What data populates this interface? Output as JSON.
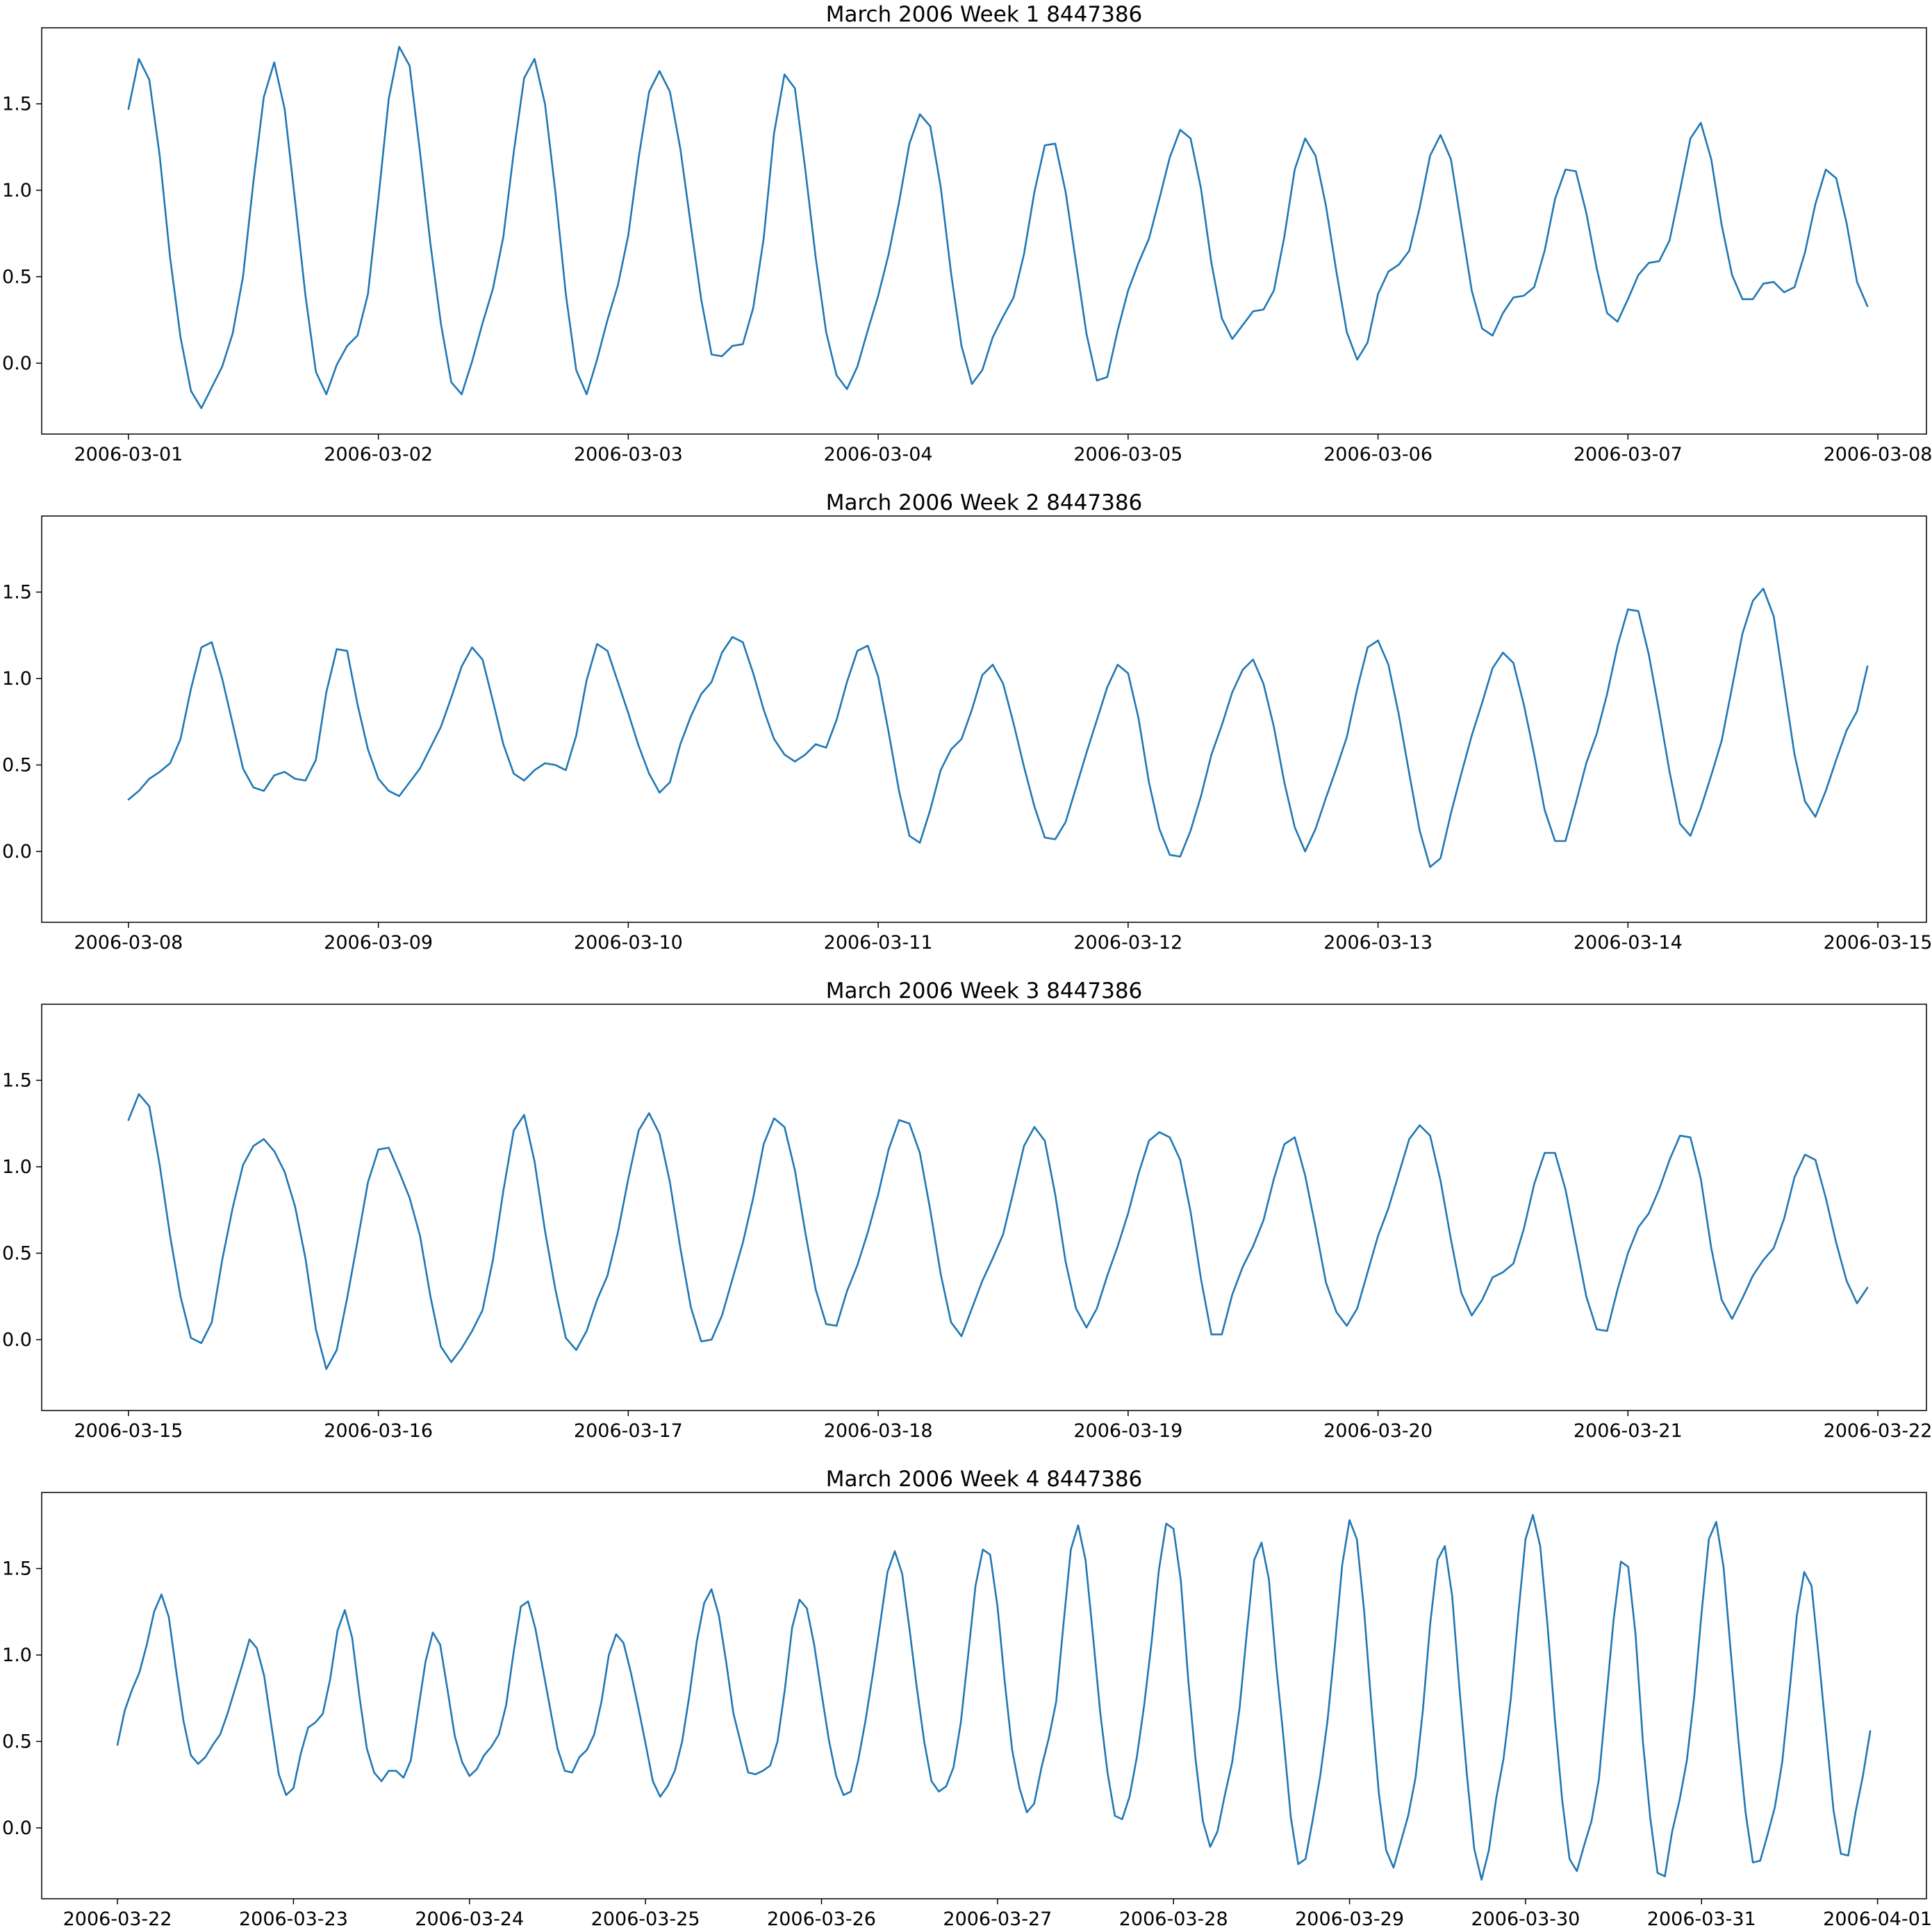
{
  "chart_data": [
    {
      "type": "line",
      "title": "March 2006 Week 1 8447386",
      "xlabel": "",
      "ylabel": "",
      "x_start": "2006-03-01 00:00",
      "x_end": "2006-03-07 23:00",
      "x_step": "1 hour",
      "xlim": [
        "2006-02-28 15:40",
        "2006-03-08 04:40"
      ],
      "ylim": [
        -0.41,
        1.94
      ],
      "xticks": [
        "2006-03-01",
        "2006-03-02",
        "2006-03-03",
        "2006-03-04",
        "2006-03-05",
        "2006-03-06",
        "2006-03-07",
        "2006-03-08"
      ],
      "yticks": [
        "0.0",
        "0.5",
        "1.0",
        "1.5"
      ],
      "ytick_values": [
        0.0,
        0.5,
        1.0,
        1.5
      ],
      "grid": false,
      "color": "#1f77b4",
      "series": [
        {
          "values": [
            1.47,
            1.76,
            1.64,
            1.2,
            0.61,
            0.15,
            -0.16,
            -0.26,
            -0.14,
            -0.02,
            0.17,
            0.5,
            1.05,
            1.54,
            1.74,
            1.47,
            0.94,
            0.39,
            -0.05,
            -0.18,
            -0.01,
            0.1,
            0.16,
            0.4,
            0.95,
            1.53,
            1.83,
            1.72,
            1.22,
            0.69,
            0.23,
            -0.11,
            -0.18,
            0.01,
            0.23,
            0.43,
            0.73,
            1.22,
            1.65,
            1.76,
            1.5,
            0.99,
            0.4,
            -0.04,
            -0.18,
            0.02,
            0.25,
            0.45,
            0.74,
            1.19,
            1.57,
            1.69,
            1.57,
            1.24,
            0.8,
            0.37,
            0.05,
            0.04,
            0.1,
            0.11,
            0.32,
            0.72,
            1.33,
            1.67,
            1.59,
            1.12,
            0.61,
            0.18,
            -0.07,
            -0.15,
            -0.02,
            0.19,
            0.39,
            0.63,
            0.93,
            1.27,
            1.44,
            1.37,
            1.02,
            0.52,
            0.1,
            -0.12,
            -0.04,
            0.15,
            0.27,
            0.38,
            0.63,
            0.99,
            1.26,
            1.27,
            0.99,
            0.58,
            0.17,
            -0.1,
            -0.08,
            0.19,
            0.42,
            0.58,
            0.72,
            0.95,
            1.19,
            1.35,
            1.3,
            1.01,
            0.58,
            0.26,
            0.14,
            0.22,
            0.3,
            0.31,
            0.42,
            0.73,
            1.12,
            1.3,
            1.2,
            0.91,
            0.53,
            0.18,
            0.02,
            0.12,
            0.4,
            0.53,
            0.57,
            0.65,
            0.9,
            1.2,
            1.32,
            1.18,
            0.8,
            0.42,
            0.2,
            0.16,
            0.29,
            0.38,
            0.39,
            0.44,
            0.65,
            0.95,
            1.12,
            1.11,
            0.87,
            0.55,
            0.29,
            0.24,
            0.37,
            0.51,
            0.58,
            0.59,
            0.71,
            1.0,
            1.3,
            1.39,
            1.18,
            0.8,
            0.51,
            0.37,
            0.37,
            0.46,
            0.47,
            0.41,
            0.44,
            0.64,
            0.92,
            1.12,
            1.07,
            0.81,
            0.47,
            0.33
          ]
        }
      ]
    },
    {
      "type": "line",
      "title": "March 2006 Week 2 8447386",
      "xlabel": "",
      "ylabel": "",
      "x_start": "2006-03-08 00:00",
      "x_end": "2006-03-14 23:00",
      "x_step": "1 hour",
      "xlim": [
        "2006-03-07 15:40",
        "2006-03-15 04:40"
      ],
      "ylim": [
        -0.41,
        1.94
      ],
      "xticks": [
        "2006-03-08",
        "2006-03-09",
        "2006-03-10",
        "2006-03-11",
        "2006-03-12",
        "2006-03-13",
        "2006-03-14",
        "2006-03-15"
      ],
      "yticks": [
        "0.0",
        "0.5",
        "1.0",
        "1.5"
      ],
      "ytick_values": [
        0.0,
        0.5,
        1.0,
        1.5
      ],
      "grid": false,
      "color": "#1f77b4",
      "series": [
        {
          "values": [
            0.3,
            0.35,
            0.42,
            0.46,
            0.51,
            0.65,
            0.94,
            1.18,
            1.21,
            1.0,
            0.74,
            0.48,
            0.37,
            0.35,
            0.44,
            0.46,
            0.42,
            0.41,
            0.53,
            0.92,
            1.17,
            1.16,
            0.85,
            0.59,
            0.42,
            0.35,
            0.32,
            0.4,
            0.48,
            0.6,
            0.72,
            0.89,
            1.07,
            1.18,
            1.11,
            0.87,
            0.62,
            0.45,
            0.41,
            0.47,
            0.51,
            0.5,
            0.47,
            0.67,
            0.99,
            1.2,
            1.16,
            0.98,
            0.8,
            0.61,
            0.45,
            0.34,
            0.4,
            0.62,
            0.78,
            0.91,
            0.98,
            1.15,
            1.24,
            1.21,
            1.03,
            0.82,
            0.65,
            0.56,
            0.52,
            0.56,
            0.62,
            0.6,
            0.76,
            0.98,
            1.16,
            1.19,
            1.01,
            0.69,
            0.35,
            0.09,
            0.05,
            0.24,
            0.47,
            0.59,
            0.65,
            0.82,
            1.02,
            1.08,
            0.97,
            0.74,
            0.49,
            0.26,
            0.08,
            0.07,
            0.17,
            0.37,
            0.57,
            0.76,
            0.95,
            1.08,
            1.03,
            0.77,
            0.4,
            0.13,
            -0.02,
            -0.03,
            0.12,
            0.32,
            0.56,
            0.73,
            0.92,
            1.05,
            1.11,
            0.97,
            0.72,
            0.4,
            0.14,
            0.0,
            0.13,
            0.31,
            0.48,
            0.66,
            0.94,
            1.18,
            1.22,
            1.08,
            0.79,
            0.45,
            0.12,
            -0.09,
            -0.04,
            0.22,
            0.45,
            0.67,
            0.86,
            1.06,
            1.15,
            1.09,
            0.85,
            0.56,
            0.24,
            0.06,
            0.06,
            0.28,
            0.51,
            0.68,
            0.91,
            1.19,
            1.4,
            1.39,
            1.14,
            0.81,
            0.46,
            0.16,
            0.09,
            0.25,
            0.44,
            0.64,
            0.95,
            1.26,
            1.45,
            1.52,
            1.36,
            0.96,
            0.56,
            0.29,
            0.2,
            0.35,
            0.53,
            0.7,
            0.81,
            1.07
          ]
        }
      ]
    },
    {
      "type": "line",
      "title": "March 2006 Week 3 8447386",
      "xlabel": "",
      "ylabel": "",
      "x_start": "2006-03-15 00:00",
      "x_end": "2006-03-21 23:00",
      "x_step": "1 hour",
      "xlim": [
        "2006-03-14 15:40",
        "2006-03-22 04:40"
      ],
      "ylim": [
        -0.41,
        1.94
      ],
      "xticks": [
        "2006-03-15",
        "2006-03-16",
        "2006-03-17",
        "2006-03-18",
        "2006-03-19",
        "2006-03-20",
        "2006-03-21",
        "2006-03-22"
      ],
      "yticks": [
        "0.0",
        "0.5",
        "1.0",
        "1.5"
      ],
      "ytick_values": [
        0.0,
        0.5,
        1.0,
        1.5
      ],
      "grid": false,
      "color": "#1f77b4",
      "series": [
        {
          "values": [
            1.27,
            1.42,
            1.35,
            1.01,
            0.6,
            0.25,
            0.01,
            -0.02,
            0.1,
            0.46,
            0.76,
            1.01,
            1.12,
            1.16,
            1.09,
            0.97,
            0.77,
            0.47,
            0.06,
            -0.17,
            -0.06,
            0.24,
            0.57,
            0.91,
            1.1,
            1.11,
            0.97,
            0.82,
            0.6,
            0.25,
            -0.04,
            -0.13,
            -0.05,
            0.05,
            0.17,
            0.46,
            0.86,
            1.21,
            1.3,
            1.03,
            0.63,
            0.29,
            0.01,
            -0.06,
            0.05,
            0.23,
            0.37,
            0.62,
            0.93,
            1.21,
            1.31,
            1.19,
            0.91,
            0.53,
            0.19,
            -0.01,
            0.0,
            0.14,
            0.35,
            0.56,
            0.82,
            1.13,
            1.28,
            1.23,
            0.98,
            0.62,
            0.29,
            0.09,
            0.08,
            0.28,
            0.43,
            0.62,
            0.84,
            1.1,
            1.27,
            1.25,
            1.08,
            0.75,
            0.38,
            0.1,
            0.02,
            0.18,
            0.34,
            0.47,
            0.61,
            0.86,
            1.12,
            1.23,
            1.15,
            0.84,
            0.45,
            0.18,
            0.07,
            0.18,
            0.37,
            0.54,
            0.73,
            0.96,
            1.15,
            1.2,
            1.17,
            1.04,
            0.74,
            0.35,
            0.03,
            0.03,
            0.26,
            0.42,
            0.54,
            0.69,
            0.93,
            1.13,
            1.17,
            0.95,
            0.65,
            0.33,
            0.16,
            0.08,
            0.18,
            0.39,
            0.6,
            0.76,
            0.96,
            1.16,
            1.24,
            1.18,
            0.92,
            0.58,
            0.27,
            0.14,
            0.23,
            0.36,
            0.39,
            0.44,
            0.64,
            0.9,
            1.08,
            1.08,
            0.87,
            0.56,
            0.25,
            0.06,
            0.05,
            0.29,
            0.5,
            0.65,
            0.73,
            0.87,
            1.04,
            1.18,
            1.17,
            0.93,
            0.53,
            0.23,
            0.12,
            0.24,
            0.37,
            0.46,
            0.53,
            0.7,
            0.94,
            1.07,
            1.04,
            0.82,
            0.56,
            0.34,
            0.21,
            0.3
          ]
        }
      ]
    },
    {
      "type": "line",
      "title": "March 2006 Week 4 8447386",
      "xlabel": "",
      "ylabel": "",
      "x_start": "2006-03-22 00:00",
      "x_end": "2006-03-31 23:00",
      "x_step": "1 hour",
      "xlim": [
        "2006-03-21 13:40",
        "2006-04-01 06:40"
      ],
      "ylim": [
        -0.41,
        1.94
      ],
      "xticks": [
        "2006-03-22",
        "2006-03-23",
        "2006-03-24",
        "2006-03-25",
        "2006-03-26",
        "2006-03-27",
        "2006-03-28",
        "2006-03-29",
        "2006-03-30",
        "2006-03-31",
        "2006-04-01"
      ],
      "yticks": [
        "0.0",
        "0.5",
        "1.0",
        "1.5"
      ],
      "ytick_values": [
        0.0,
        0.5,
        1.0,
        1.5
      ],
      "grid": false,
      "color": "#1f77b4",
      "series": [
        {
          "values": [
            0.48,
            0.68,
            0.8,
            0.9,
            1.06,
            1.25,
            1.35,
            1.22,
            0.91,
            0.62,
            0.42,
            0.37,
            0.41,
            0.48,
            0.54,
            0.66,
            0.8,
            0.94,
            1.09,
            1.04,
            0.88,
            0.59,
            0.31,
            0.19,
            0.23,
            0.43,
            0.58,
            0.61,
            0.66,
            0.86,
            1.14,
            1.26,
            1.1,
            0.76,
            0.46,
            0.32,
            0.27,
            0.33,
            0.33,
            0.29,
            0.39,
            0.68,
            0.96,
            1.13,
            1.06,
            0.8,
            0.53,
            0.38,
            0.3,
            0.34,
            0.42,
            0.47,
            0.54,
            0.71,
            1.01,
            1.28,
            1.31,
            1.15,
            0.92,
            0.69,
            0.46,
            0.33,
            0.32,
            0.41,
            0.45,
            0.54,
            0.73,
            1.0,
            1.12,
            1.07,
            0.9,
            0.7,
            0.49,
            0.27,
            0.18,
            0.24,
            0.33,
            0.5,
            0.77,
            1.08,
            1.3,
            1.38,
            1.23,
            0.96,
            0.66,
            0.49,
            0.32,
            0.31,
            0.33,
            0.36,
            0.5,
            0.8,
            1.16,
            1.32,
            1.27,
            1.06,
            0.78,
            0.51,
            0.3,
            0.19,
            0.21,
            0.39,
            0.62,
            0.89,
            1.18,
            1.48,
            1.6,
            1.47,
            1.15,
            0.81,
            0.5,
            0.27,
            0.21,
            0.24,
            0.35,
            0.61,
            1.0,
            1.4,
            1.61,
            1.58,
            1.28,
            0.84,
            0.45,
            0.23,
            0.09,
            0.14,
            0.35,
            0.52,
            0.73,
            1.18,
            1.61,
            1.75,
            1.55,
            1.12,
            0.67,
            0.32,
            0.07,
            0.05,
            0.18,
            0.41,
            0.71,
            1.07,
            1.49,
            1.76,
            1.73,
            1.43,
            0.86,
            0.4,
            0.04,
            -0.11,
            -0.02,
            0.19,
            0.38,
            0.69,
            1.13,
            1.55,
            1.65,
            1.44,
            0.94,
            0.52,
            0.06,
            -0.21,
            -0.18,
            0.05,
            0.3,
            0.62,
            1.05,
            1.52,
            1.78,
            1.67,
            1.25,
            0.7,
            0.2,
            -0.13,
            -0.23,
            -0.08,
            0.07,
            0.29,
            0.68,
            1.18,
            1.55,
            1.63,
            1.34,
            0.8,
            0.31,
            -0.12,
            -0.3,
            -0.13,
            0.17,
            0.4,
            0.75,
            1.23,
            1.67,
            1.81,
            1.63,
            1.17,
            0.63,
            0.16,
            -0.18,
            -0.25,
            -0.1,
            0.04,
            0.28,
            0.74,
            1.2,
            1.54,
            1.51,
            1.12,
            0.5,
            0.06,
            -0.26,
            -0.28,
            -0.02,
            0.16,
            0.39,
            0.76,
            1.24,
            1.67,
            1.77,
            1.51,
            1.01,
            0.52,
            0.09,
            -0.2,
            -0.19,
            -0.04,
            0.12,
            0.38,
            0.79,
            1.23,
            1.48,
            1.4,
            0.98,
            0.54,
            0.1,
            -0.15,
            -0.16,
            0.09,
            0.3,
            0.56
          ]
        }
      ]
    }
  ]
}
